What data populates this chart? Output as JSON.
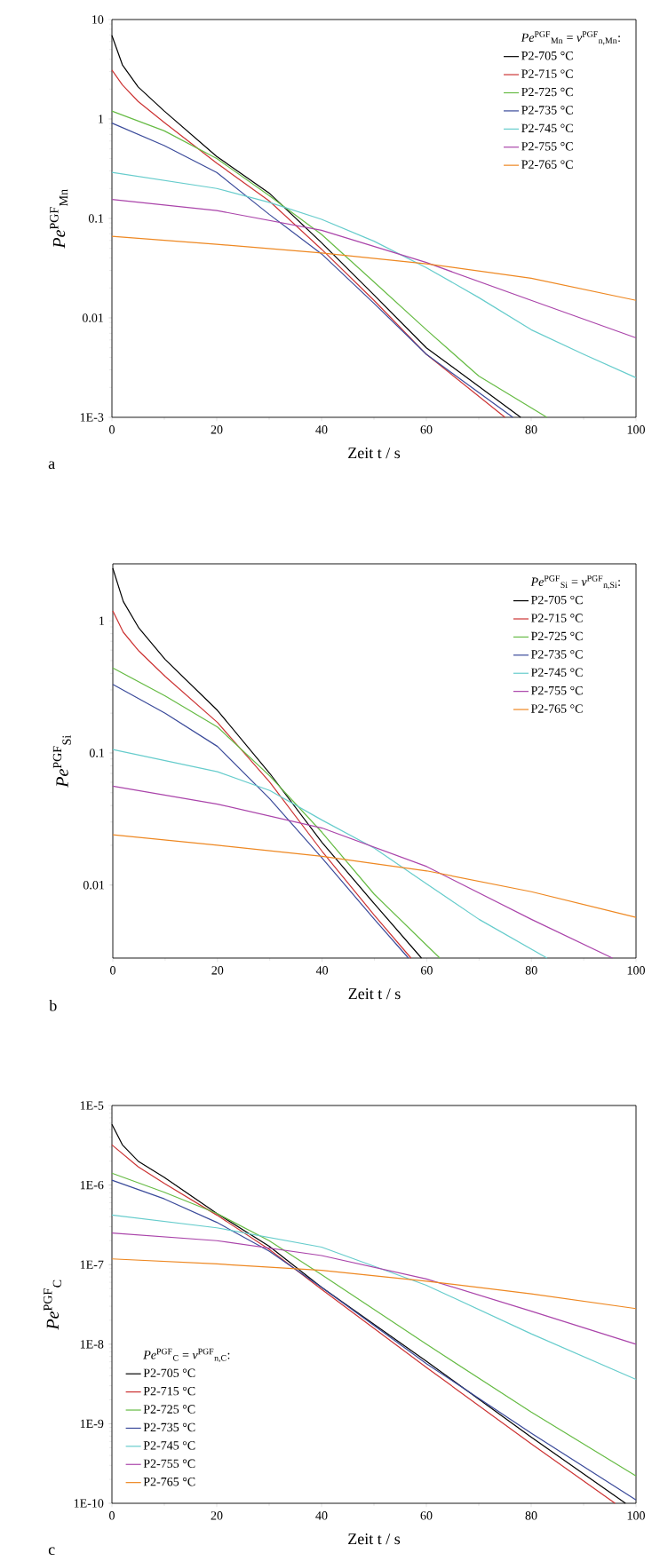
{
  "chart_data": [
    {
      "type": "line",
      "xlabel": "Zeit t / s",
      "ylabel": "*Pe*$^{PGF}$$_{Mn}$",
      "legend_title": "*Pe*$^{PGF}$$_{Mn}$ = *v*$^{PGF}$$_{n,Mn}$:",
      "annotations": [
        "a"
      ],
      "log": "y",
      "legend": "top right",
      "xlim": [
        0,
        100
      ],
      "xticks": [
        0,
        20,
        40,
        60,
        80,
        100
      ],
      "ylim": [
        0.001,
        10
      ],
      "yticks": [
        {
          "value": 0.001,
          "label": "1E-3"
        },
        0.01,
        0.1,
        1,
        10
      ],
      "series": [
        {
          "name": "P2-705 °C",
          "color": "#000000",
          "x": [
            0,
            2,
            5,
            10,
            20,
            30,
            40,
            50,
            60,
            78
          ],
          "values": [
            6.9,
            3.5,
            2.1,
            1.2,
            0.42,
            0.18,
            0.057,
            0.017,
            0.005,
            0.001
          ]
        },
        {
          "name": "P2-715 °C",
          "color": "#cc3333",
          "x": [
            0,
            2,
            5,
            10,
            20,
            30,
            40,
            50,
            60,
            75
          ],
          "values": [
            3.1,
            2.2,
            1.5,
            0.92,
            0.36,
            0.15,
            0.049,
            0.015,
            0.0043,
            0.001
          ]
        },
        {
          "name": "P2-725 °C",
          "color": "#66bb44",
          "x": [
            0,
            10,
            20,
            30,
            40,
            50,
            60,
            70,
            83
          ],
          "values": [
            1.2,
            0.76,
            0.4,
            0.17,
            0.069,
            0.023,
            0.0076,
            0.0026,
            0.001
          ]
        },
        {
          "name": "P2-735 °C",
          "color": "#3a4a9a",
          "x": [
            0,
            10,
            20,
            30,
            40,
            50,
            60,
            76.5
          ],
          "values": [
            0.91,
            0.54,
            0.29,
            0.11,
            0.044,
            0.014,
            0.0043,
            0.001
          ]
        },
        {
          "name": "P2-745 °C",
          "color": "#66cccc",
          "x": [
            0,
            20,
            30,
            40,
            50,
            60,
            70,
            80,
            90,
            100
          ],
          "values": [
            0.29,
            0.2,
            0.145,
            0.098,
            0.059,
            0.032,
            0.016,
            0.0076,
            0.0043,
            0.0025
          ]
        },
        {
          "name": "P2-755 °C",
          "color": "#aa44aa",
          "x": [
            0,
            20,
            40,
            60,
            80,
            100
          ],
          "values": [
            0.155,
            0.12,
            0.076,
            0.036,
            0.015,
            0.0063
          ]
        },
        {
          "name": "P2-765 °C",
          "color": "#ee8822",
          "x": [
            0,
            20,
            40,
            60,
            80,
            100
          ],
          "values": [
            0.066,
            0.055,
            0.045,
            0.035,
            0.025,
            0.015
          ]
        }
      ]
    },
    {
      "type": "line",
      "xlabel": "Zeit t / s",
      "ylabel": "*Pe*$^{PGF}$$_{Si}$",
      "legend_title": "*Pe*$^{PGF}$$_{Si}$ = *v*$^{PGF}$$_{n,Si}$:",
      "annotations": [
        "b"
      ],
      "log": "y",
      "legend": "top right",
      "xlim": [
        0,
        100
      ],
      "xticks": [
        0,
        20,
        40,
        60,
        80,
        100
      ],
      "ylim": [
        0.0028,
        2.7
      ],
      "yticks": [
        0.01,
        0.1,
        1
      ],
      "series": [
        {
          "name": "P2-705 °C",
          "color": "#000000",
          "x": [
            0,
            2,
            5,
            10,
            20,
            30,
            40,
            50,
            59
          ],
          "values": [
            2.5,
            1.4,
            0.88,
            0.51,
            0.21,
            0.07,
            0.021,
            0.0072,
            0.0028
          ]
        },
        {
          "name": "P2-715 °C",
          "color": "#cc3333",
          "x": [
            0,
            2,
            5,
            10,
            20,
            30,
            40,
            50,
            57
          ],
          "values": [
            1.19,
            0.82,
            0.59,
            0.38,
            0.17,
            0.06,
            0.018,
            0.0059,
            0.0028
          ]
        },
        {
          "name": "P2-725 °C",
          "color": "#66bb44",
          "x": [
            0,
            10,
            20,
            30,
            40,
            50,
            62.5
          ],
          "values": [
            0.44,
            0.27,
            0.157,
            0.067,
            0.025,
            0.0085,
            0.0028
          ]
        },
        {
          "name": "P2-735 °C",
          "color": "#3a4a9a",
          "x": [
            0,
            10,
            20,
            30,
            40,
            50,
            56.5
          ],
          "values": [
            0.33,
            0.2,
            0.112,
            0.045,
            0.016,
            0.0055,
            0.0028
          ]
        },
        {
          "name": "P2-745 °C",
          "color": "#66cccc",
          "x": [
            0,
            20,
            30,
            40,
            50,
            60,
            70,
            83
          ],
          "values": [
            0.106,
            0.072,
            0.052,
            0.031,
            0.019,
            0.0102,
            0.0055,
            0.0028
          ]
        },
        {
          "name": "P2-755 °C",
          "color": "#aa44aa",
          "x": [
            0,
            20,
            40,
            60,
            80,
            95.5
          ],
          "values": [
            0.056,
            0.041,
            0.027,
            0.0138,
            0.0055,
            0.0028
          ]
        },
        {
          "name": "P2-765 °C",
          "color": "#ee8822",
          "x": [
            0,
            20,
            40,
            60,
            80,
            100
          ],
          "values": [
            0.024,
            0.02,
            0.0165,
            0.0128,
            0.0089,
            0.0057
          ]
        }
      ]
    },
    {
      "type": "line",
      "xlabel": "Zeit t / s",
      "ylabel": "*Pe*$^{PGF}$$_{C}$",
      "legend_title": "*Pe*$^{PGF}$$_{C}$ = *v*$^{PGF}$$_{n,C}$:",
      "annotations": [
        "c"
      ],
      "log": "y",
      "legend": "bottom left",
      "xlim": [
        0,
        100
      ],
      "xticks": [
        0,
        20,
        40,
        60,
        80,
        100
      ],
      "ylim": [
        1e-10,
        1e-05
      ],
      "yticks": [
        {
          "value": 1e-10,
          "label": "1E-10"
        },
        {
          "value": 1e-09,
          "label": "1E-9"
        },
        {
          "value": 1e-08,
          "label": "1E-8"
        },
        {
          "value": 1e-07,
          "label": "1E-7"
        },
        {
          "value": 1e-06,
          "label": "1E-6"
        },
        {
          "value": 1e-05,
          "label": "1E-5"
        }
      ],
      "series": [
        {
          "name": "P2-705 °C",
          "color": "#000000",
          "x": [
            0,
            2,
            5,
            10,
            20,
            30,
            40,
            60,
            80,
            98
          ],
          "values": [
            5.8e-06,
            3.2e-06,
            2e-06,
            1.25e-06,
            4.4e-07,
            1.7e-07,
            5.2e-08,
            6.1e-09,
            6.8e-10,
            1e-10
          ]
        },
        {
          "name": "P2-715 °C",
          "color": "#cc3333",
          "x": [
            0,
            5,
            10,
            20,
            30,
            40,
            60,
            80,
            96
          ],
          "values": [
            3.2e-06,
            1.7e-06,
            1.05e-06,
            4.2e-07,
            1.56e-07,
            4.9e-08,
            5.1e-09,
            5.6e-10,
            1e-10
          ]
        },
        {
          "name": "P2-725 °C",
          "color": "#66bb44",
          "x": [
            0,
            10,
            20,
            30,
            40,
            60,
            80,
            100
          ],
          "values": [
            1.41e-06,
            8.1e-07,
            4.4e-07,
            2e-07,
            7.5e-08,
            1e-08,
            1.4e-09,
            2.2e-10
          ]
        },
        {
          "name": "P2-735 °C",
          "color": "#3a4a9a",
          "x": [
            0,
            10,
            20,
            30,
            40,
            60,
            80,
            100
          ],
          "values": [
            1.15e-06,
            6.7e-07,
            3.4e-07,
            1.48e-07,
            5.2e-08,
            5.7e-09,
            7.6e-10,
            1.1e-10
          ]
        },
        {
          "name": "P2-745 °C",
          "color": "#66cccc",
          "x": [
            0,
            20,
            40,
            60,
            80,
            100
          ],
          "values": [
            4.2e-07,
            2.9e-07,
            1.66e-07,
            5.5e-08,
            1.35e-08,
            3.6e-09
          ]
        },
        {
          "name": "P2-755 °C",
          "color": "#aa44aa",
          "x": [
            0,
            20,
            40,
            60,
            80,
            100
          ],
          "values": [
            2.5e-07,
            2e-07,
            1.3e-07,
            6.6e-08,
            2.6e-08,
            1e-08
          ]
        },
        {
          "name": "P2-765 °C",
          "color": "#ee8822",
          "x": [
            0,
            20,
            40,
            60,
            80,
            100
          ],
          "values": [
            1.18e-07,
            1.02e-07,
            8.5e-08,
            6.2e-08,
            4.3e-08,
            2.8e-08
          ]
        }
      ]
    }
  ]
}
